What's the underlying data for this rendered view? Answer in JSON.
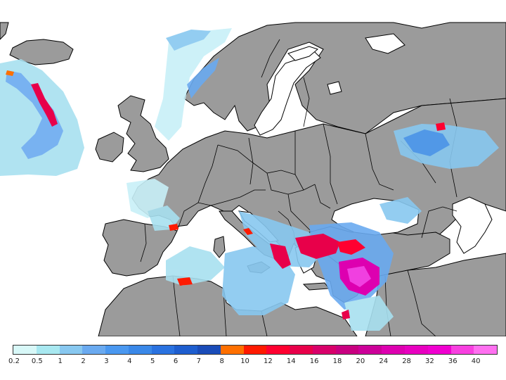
{
  "map": {
    "colors": {
      "sea": "#ffffff",
      "land": "#9b9b9b",
      "border": "#000000"
    },
    "features": [
      "coastline",
      "country-borders",
      "precipitation-shading"
    ]
  },
  "legend": {
    "colors": [
      "#d8f8f8",
      "#a8e8f0",
      "#88c8f0",
      "#6aaaf0",
      "#4a98f0",
      "#3a88e8",
      "#2a72e0",
      "#1e5ecf",
      "#1a4cb8",
      "#ff7000",
      "#ff1a00",
      "#ff0030",
      "#e8004a",
      "#d8006a",
      "#c80080",
      "#cc0099",
      "#dd00b0",
      "#e800c0",
      "#f000d0",
      "#f840e0",
      "#ff70f0"
    ],
    "labels": [
      "0.2",
      "0.5",
      "1",
      "2",
      "3",
      "4",
      "5",
      "6",
      "7",
      "8",
      "10",
      "12",
      "14",
      "16",
      "18",
      "20",
      "24",
      "28",
      "32",
      "36",
      "40"
    ]
  }
}
